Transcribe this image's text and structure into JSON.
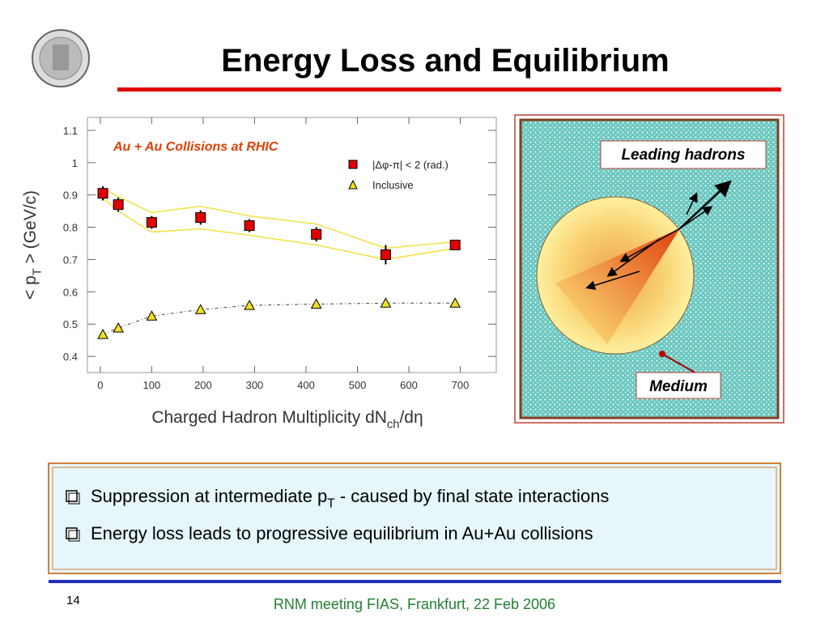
{
  "title": "Energy Loss and Equilibrium",
  "chart_data": {
    "type": "scatter",
    "annotation": "Au + Au Collisions at RHIC",
    "xlabel": {
      "main": "Charged Hadron Multiplicity dN",
      "sub": "ch",
      "rest": "/dη"
    },
    "ylabel": {
      "main": "< p",
      "sub": "T",
      "rest": " > (GeV/c)"
    },
    "xlim": [
      -25,
      770
    ],
    "ylim": [
      0.35,
      1.14
    ],
    "xticks": [
      0,
      100,
      200,
      300,
      400,
      500,
      600,
      700
    ],
    "yticks": [
      0.4,
      0.5,
      0.6,
      0.7,
      0.8,
      0.9,
      1,
      1.1
    ],
    "series": [
      {
        "name": "|Δφ-π| < 2 (rad.)",
        "color": "#e00000",
        "marker": "square",
        "x": [
          5,
          35,
          100,
          195,
          290,
          420,
          555,
          690
        ],
        "values": [
          0.905,
          0.87,
          0.815,
          0.83,
          0.805,
          0.778,
          0.715,
          0.745
        ],
        "errors": [
          0.022,
          0.022,
          0.02,
          0.022,
          0.02,
          0.022,
          0.03,
          0.012
        ],
        "band_upper": [
          0.92,
          0.895,
          0.845,
          0.865,
          0.835,
          0.81,
          0.735,
          0.755
        ],
        "band_lower": [
          0.89,
          0.85,
          0.785,
          0.795,
          0.775,
          0.745,
          0.7,
          0.735
        ]
      },
      {
        "name": "Inclusive",
        "color": "#f0e020",
        "marker": "triangle",
        "x": [
          5,
          35,
          100,
          195,
          290,
          420,
          555,
          690
        ],
        "values": [
          0.468,
          0.488,
          0.525,
          0.545,
          0.558,
          0.562,
          0.565,
          0.565
        ]
      }
    ]
  },
  "diagram": {
    "top_label": "Leading hadrons",
    "bottom_label": "Medium"
  },
  "bullets": [
    {
      "main": "Suppression at intermediate p",
      "sub": "T",
      "rest": " - caused by final state interactions"
    },
    {
      "main": "Energy loss leads to progressive equilibrium in Au+Au collisions"
    }
  ],
  "footer": {
    "page": "14",
    "text": "RNM meeting FIAS, Frankfurt, 22 Feb 2006"
  }
}
